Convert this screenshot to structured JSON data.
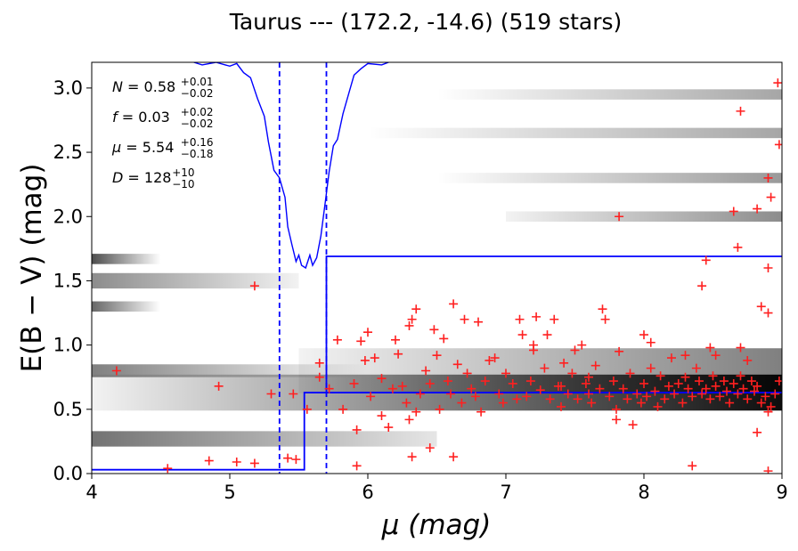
{
  "chart_data": {
    "type": "scatter",
    "title": "Taurus --- (172.2, -14.6) (519 stars)",
    "xlabel": "μ (mag)",
    "ylabel": "E(B − V) (mag)",
    "xlim": [
      4,
      9
    ],
    "ylim": [
      0,
      3.2
    ],
    "xticks": [
      "4",
      "5",
      "6",
      "7",
      "8",
      "9"
    ],
    "yticks": [
      "0.0",
      "0.5",
      "1.0",
      "1.5",
      "2.0",
      "2.5",
      "3.0"
    ],
    "grid": false,
    "colors": {
      "points": "#ff2020",
      "model": "#0000ff",
      "background": "grayscale-density"
    },
    "annotations": [
      {
        "sym": "N",
        "val": "0.58",
        "sup": "+0.01",
        "sub": "−0.02"
      },
      {
        "sym": "f",
        "val": "0.03",
        "sup": "+0.02",
        "sub": "−0.02"
      },
      {
        "sym": "μ",
        "val": "5.54",
        "sup": "+0.16",
        "sub": "−0.18"
      },
      {
        "sym": "D",
        "val": "128",
        "sup": "+10",
        "sub": "−10"
      }
    ],
    "step_model": {
      "mu_break": 5.54,
      "foreground_ebv": 0.03,
      "background_ebv": 0.63,
      "upper_step_ebv": 1.69,
      "upper_step_start": 5.7
    },
    "dashed_lines_mu": [
      5.36,
      5.7
    ],
    "likelihood_curve": [
      [
        4.74,
        3.2
      ],
      [
        4.8,
        3.18
      ],
      [
        4.9,
        3.2
      ],
      [
        5.0,
        3.17
      ],
      [
        5.05,
        3.19
      ],
      [
        5.1,
        3.12
      ],
      [
        5.15,
        3.08
      ],
      [
        5.2,
        2.92
      ],
      [
        5.25,
        2.78
      ],
      [
        5.28,
        2.58
      ],
      [
        5.32,
        2.36
      ],
      [
        5.36,
        2.3
      ],
      [
        5.4,
        2.15
      ],
      [
        5.42,
        1.92
      ],
      [
        5.45,
        1.78
      ],
      [
        5.48,
        1.65
      ],
      [
        5.5,
        1.7
      ],
      [
        5.52,
        1.62
      ],
      [
        5.55,
        1.6
      ],
      [
        5.58,
        1.7
      ],
      [
        5.6,
        1.62
      ],
      [
        5.63,
        1.68
      ],
      [
        5.66,
        1.85
      ],
      [
        5.69,
        2.1
      ],
      [
        5.72,
        2.35
      ],
      [
        5.75,
        2.55
      ],
      [
        5.78,
        2.6
      ],
      [
        5.82,
        2.8
      ],
      [
        5.86,
        2.95
      ],
      [
        5.9,
        3.1
      ],
      [
        5.95,
        3.15
      ],
      [
        6.0,
        3.19
      ],
      [
        6.1,
        3.18
      ],
      [
        6.15,
        3.2
      ]
    ],
    "density_bands": [
      {
        "x0": 4.0,
        "x1": 9.0,
        "y": 0.63,
        "h": 0.28,
        "a0": 0.05,
        "a1": 0.95
      },
      {
        "x0": 5.5,
        "x1": 9.0,
        "y": 0.8,
        "h": 0.35,
        "a0": 0.05,
        "a1": 0.5
      },
      {
        "x0": 4.0,
        "x1": 6.5,
        "y": 0.27,
        "h": 0.12,
        "a0": 0.55,
        "a1": 0.1
      },
      {
        "x0": 4.0,
        "x1": 6.0,
        "y": 0.8,
        "h": 0.1,
        "a0": 0.5,
        "a1": 0.0
      },
      {
        "x0": 4.0,
        "x1": 5.5,
        "y": 1.5,
        "h": 0.12,
        "a0": 0.45,
        "a1": 0.05
      },
      {
        "x0": 7.0,
        "x1": 9.0,
        "y": 2.0,
        "h": 0.08,
        "a0": 0.05,
        "a1": 0.45
      },
      {
        "x0": 6.5,
        "x1": 9.0,
        "y": 2.3,
        "h": 0.08,
        "a0": 0.0,
        "a1": 0.4
      },
      {
        "x0": 6.0,
        "x1": 9.0,
        "y": 2.65,
        "h": 0.08,
        "a0": 0.0,
        "a1": 0.35
      },
      {
        "x0": 6.5,
        "x1": 9.0,
        "y": 2.95,
        "h": 0.08,
        "a0": 0.0,
        "a1": 0.35
      },
      {
        "x0": 4.0,
        "x1": 4.5,
        "y": 1.67,
        "h": 0.08,
        "a0": 0.7,
        "a1": 0.0
      },
      {
        "x0": 4.0,
        "x1": 4.5,
        "y": 1.3,
        "h": 0.08,
        "a0": 0.6,
        "a1": 0.0
      }
    ],
    "points": [
      [
        4.18,
        0.8
      ],
      [
        4.55,
        0.04
      ],
      [
        4.85,
        0.1
      ],
      [
        5.05,
        0.09
      ],
      [
        5.18,
        0.08
      ],
      [
        4.92,
        0.68
      ],
      [
        5.18,
        1.46
      ],
      [
        5.3,
        0.62
      ],
      [
        5.42,
        0.12
      ],
      [
        5.48,
        0.11
      ],
      [
        5.46,
        0.62
      ],
      [
        5.56,
        0.5
      ],
      [
        5.65,
        0.75
      ],
      [
        5.65,
        0.86
      ],
      [
        5.72,
        0.66
      ],
      [
        5.78,
        1.04
      ],
      [
        5.82,
        0.5
      ],
      [
        5.9,
        0.7
      ],
      [
        5.92,
        0.34
      ],
      [
        5.92,
        0.06
      ],
      [
        5.95,
        1.03
      ],
      [
        5.98,
        0.88
      ],
      [
        6.0,
        1.1
      ],
      [
        6.02,
        0.6
      ],
      [
        6.05,
        0.9
      ],
      [
        6.1,
        0.45
      ],
      [
        6.1,
        0.74
      ],
      [
        6.15,
        0.36
      ],
      [
        6.18,
        0.66
      ],
      [
        6.2,
        1.04
      ],
      [
        6.22,
        0.93
      ],
      [
        6.25,
        0.68
      ],
      [
        6.28,
        0.55
      ],
      [
        6.3,
        1.15
      ],
      [
        6.32,
        1.2
      ],
      [
        6.35,
        1.28
      ],
      [
        6.35,
        0.48
      ],
      [
        6.38,
        0.62
      ],
      [
        6.42,
        0.8
      ],
      [
        6.45,
        0.7
      ],
      [
        6.48,
        1.12
      ],
      [
        6.5,
        0.92
      ],
      [
        6.52,
        0.5
      ],
      [
        6.55,
        1.05
      ],
      [
        6.58,
        0.72
      ],
      [
        6.6,
        0.62
      ],
      [
        6.62,
        1.32
      ],
      [
        6.65,
        0.85
      ],
      [
        6.68,
        0.55
      ],
      [
        6.7,
        1.2
      ],
      [
        6.72,
        0.78
      ],
      [
        6.75,
        0.66
      ],
      [
        6.78,
        0.6
      ],
      [
        6.8,
        1.18
      ],
      [
        6.82,
        0.48
      ],
      [
        6.85,
        0.72
      ],
      [
        6.88,
        0.88
      ],
      [
        6.92,
        0.9
      ],
      [
        6.95,
        0.62
      ],
      [
        6.98,
        0.55
      ],
      [
        7.0,
        0.78
      ],
      [
        7.05,
        0.7
      ],
      [
        7.08,
        0.58
      ],
      [
        7.1,
        1.2
      ],
      [
        7.12,
        1.08
      ],
      [
        7.15,
        0.6
      ],
      [
        7.18,
        0.72
      ],
      [
        7.2,
        0.96
      ],
      [
        7.22,
        1.22
      ],
      [
        7.25,
        0.65
      ],
      [
        7.28,
        0.82
      ],
      [
        7.3,
        1.08
      ],
      [
        7.32,
        0.58
      ],
      [
        7.35,
        1.2
      ],
      [
        7.38,
        0.68
      ],
      [
        7.4,
        0.52
      ],
      [
        7.42,
        0.86
      ],
      [
        7.45,
        0.62
      ],
      [
        7.48,
        0.78
      ],
      [
        7.5,
        0.96
      ],
      [
        7.52,
        0.58
      ],
      [
        7.55,
        1.0
      ],
      [
        7.58,
        0.7
      ],
      [
        7.6,
        0.62
      ],
      [
        7.62,
        0.55
      ],
      [
        7.65,
        0.84
      ],
      [
        7.68,
        0.66
      ],
      [
        7.7,
        1.28
      ],
      [
        7.72,
        1.2
      ],
      [
        7.75,
        0.6
      ],
      [
        7.78,
        0.72
      ],
      [
        7.8,
        0.5
      ],
      [
        7.82,
        0.95
      ],
      [
        7.85,
        0.66
      ],
      [
        7.88,
        0.58
      ],
      [
        7.9,
        0.78
      ],
      [
        7.92,
        0.38
      ],
      [
        7.95,
        0.62
      ],
      [
        7.98,
        0.55
      ],
      [
        8.0,
        0.7
      ],
      [
        8.02,
        0.6
      ],
      [
        8.05,
        0.82
      ],
      [
        8.08,
        0.64
      ],
      [
        8.1,
        0.52
      ],
      [
        8.12,
        0.76
      ],
      [
        8.15,
        0.58
      ],
      [
        8.18,
        0.68
      ],
      [
        8.2,
        0.9
      ],
      [
        8.22,
        0.62
      ],
      [
        8.25,
        0.7
      ],
      [
        8.28,
        0.55
      ],
      [
        8.3,
        0.75
      ],
      [
        8.32,
        0.66
      ],
      [
        8.35,
        0.6
      ],
      [
        8.38,
        0.82
      ],
      [
        8.4,
        0.72
      ],
      [
        8.42,
        0.62
      ],
      [
        8.45,
        0.66
      ],
      [
        8.48,
        0.58
      ],
      [
        8.5,
        0.76
      ],
      [
        8.52,
        0.68
      ],
      [
        8.55,
        0.6
      ],
      [
        8.58,
        0.72
      ],
      [
        8.6,
        0.64
      ],
      [
        8.62,
        0.55
      ],
      [
        8.65,
        0.7
      ],
      [
        8.68,
        0.62
      ],
      [
        8.7,
        0.76
      ],
      [
        8.72,
        0.66
      ],
      [
        8.75,
        0.58
      ],
      [
        8.78,
        0.72
      ],
      [
        8.8,
        0.64
      ],
      [
        8.82,
        0.68
      ],
      [
        8.85,
        0.55
      ],
      [
        8.88,
        0.6
      ],
      [
        8.9,
        0.48
      ],
      [
        8.92,
        0.52
      ],
      [
        8.95,
        0.62
      ],
      [
        8.98,
        0.72
      ],
      [
        7.82,
        2.0
      ],
      [
        8.7,
        2.82
      ],
      [
        8.65,
        2.04
      ],
      [
        8.82,
        2.06
      ],
      [
        8.9,
        2.3
      ],
      [
        8.92,
        2.15
      ],
      [
        8.97,
        3.04
      ],
      [
        8.98,
        2.56
      ],
      [
        8.68,
        1.76
      ],
      [
        8.45,
        1.66
      ],
      [
        8.9,
        1.6
      ],
      [
        8.42,
        1.46
      ],
      [
        8.85,
        1.3
      ],
      [
        8.9,
        1.25
      ],
      [
        8.35,
        0.06
      ],
      [
        8.9,
        0.02
      ],
      [
        8.82,
        0.32
      ],
      [
        7.2,
        1.0
      ],
      [
        7.4,
        0.68
      ],
      [
        7.6,
        0.75
      ],
      [
        8.0,
        1.08
      ],
      [
        8.05,
        1.02
      ],
      [
        8.3,
        0.92
      ],
      [
        8.48,
        0.98
      ],
      [
        8.52,
        0.92
      ],
      [
        8.7,
        0.98
      ],
      [
        8.75,
        0.88
      ],
      [
        6.3,
        0.42
      ],
      [
        6.45,
        0.2
      ],
      [
        6.62,
        0.13
      ],
      [
        6.32,
        0.13
      ],
      [
        7.8,
        0.42
      ]
    ]
  }
}
